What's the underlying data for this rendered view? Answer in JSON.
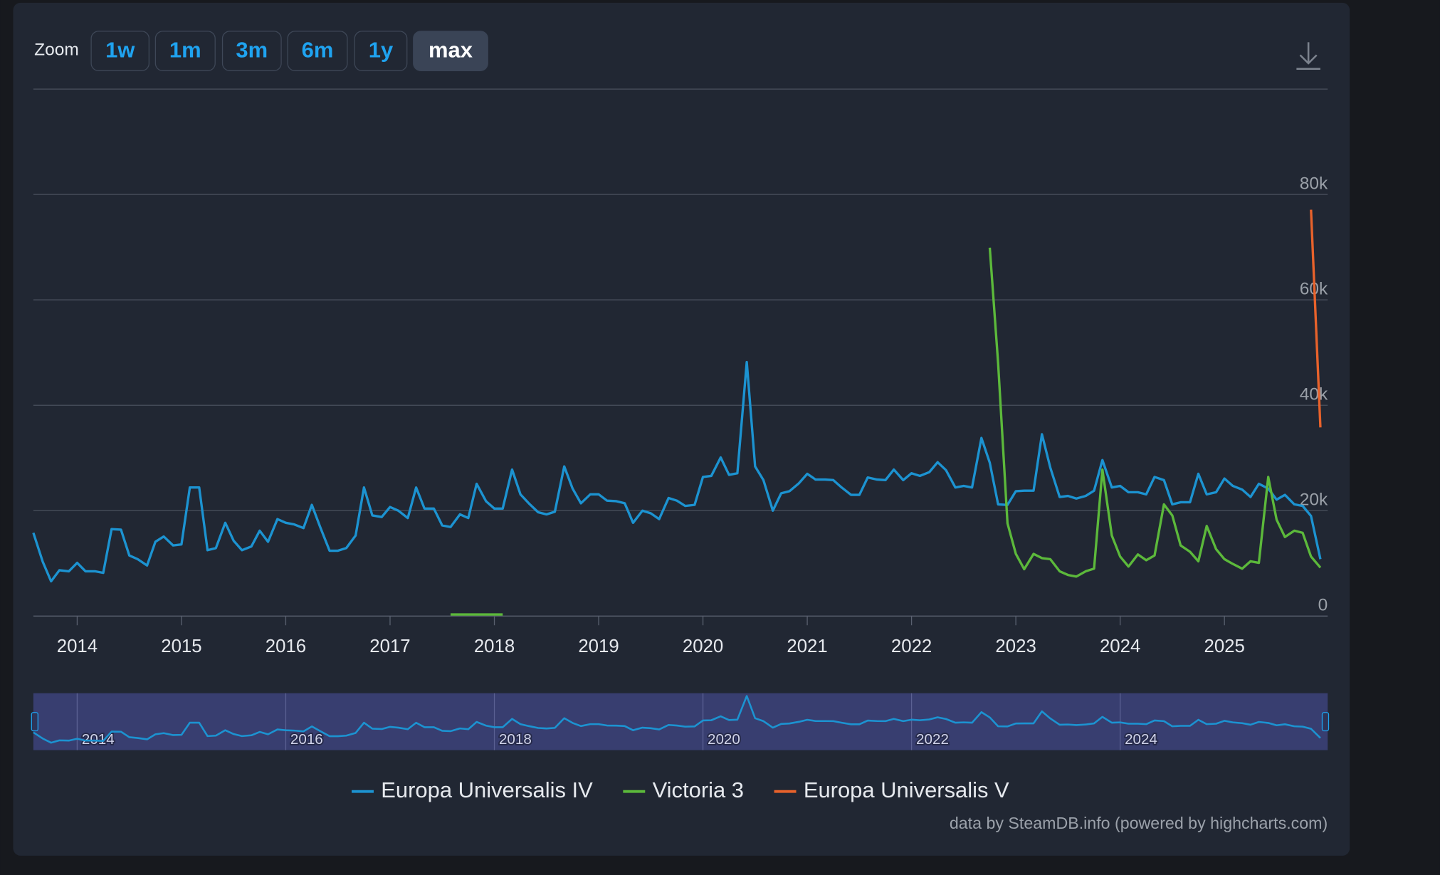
{
  "zoom": {
    "label": "Zoom",
    "buttons": [
      "1w",
      "1m",
      "3m",
      "6m",
      "1y",
      "max"
    ],
    "active": "max"
  },
  "chart_data": {
    "type": "line",
    "xlim": [
      2013.58,
      2025.99
    ],
    "xticks": [
      2014,
      2015,
      2016,
      2017,
      2018,
      2019,
      2020,
      2021,
      2022,
      2023,
      2024,
      2025
    ],
    "ylim": [
      0,
      100000
    ],
    "yticks": [
      0,
      {
        "value": 20000,
        "label": "20k"
      },
      {
        "value": 40000,
        "label": "40k"
      },
      {
        "value": 60000,
        "label": "60k"
      },
      {
        "value": 80000,
        "label": "80k"
      }
    ],
    "grid": true,
    "series": [
      {
        "name": "Europa Universalis IV",
        "color": "#1c93d1",
        "x": [
          2013.58,
          2013.67,
          2013.75,
          2013.83,
          2013.92,
          2014,
          2014.08,
          2014.17,
          2014.25,
          2014.33,
          2014.42,
          2014.5,
          2014.58,
          2014.67,
          2014.75,
          2014.83,
          2014.92,
          2015,
          2015.08,
          2015.17,
          2015.25,
          2015.33,
          2015.42,
          2015.5,
          2015.58,
          2015.67,
          2015.75,
          2015.83,
          2015.92,
          2016,
          2016.08,
          2016.17,
          2016.25,
          2016.33,
          2016.42,
          2016.5,
          2016.58,
          2016.67,
          2016.75,
          2016.83,
          2016.92,
          2017,
          2017.08,
          2017.17,
          2017.25,
          2017.33,
          2017.42,
          2017.5,
          2017.58,
          2017.67,
          2017.75,
          2017.83,
          2017.92,
          2018,
          2018.08,
          2018.17,
          2018.25,
          2018.33,
          2018.42,
          2018.5,
          2018.58,
          2018.67,
          2018.75,
          2018.83,
          2018.92,
          2019,
          2019.08,
          2019.17,
          2019.25,
          2019.33,
          2019.42,
          2019.5,
          2019.58,
          2019.67,
          2019.75,
          2019.83,
          2019.92,
          2020,
          2020.08,
          2020.17,
          2020.25,
          2020.33,
          2020.42,
          2020.5,
          2020.58,
          2020.67,
          2020.75,
          2020.83,
          2020.92,
          2021,
          2021.08,
          2021.17,
          2021.25,
          2021.33,
          2021.42,
          2021.5,
          2021.58,
          2021.67,
          2021.75,
          2021.83,
          2021.92,
          2022,
          2022.08,
          2022.17,
          2022.25,
          2022.33,
          2022.42,
          2022.5,
          2022.58,
          2022.67,
          2022.75,
          2022.83,
          2022.92,
          2023,
          2023.08,
          2023.17,
          2023.25,
          2023.33,
          2023.42,
          2023.5,
          2023.58,
          2023.67,
          2023.75,
          2023.83,
          2023.92,
          2024,
          2024.08,
          2024.17,
          2024.25,
          2024.33,
          2024.42,
          2024.5,
          2024.58,
          2024.67,
          2024.75,
          2024.83,
          2024.92,
          2025,
          2025.08,
          2025.17,
          2025.25,
          2025.33,
          2025.42,
          2025.5,
          2025.58,
          2025.67,
          2025.75,
          2025.83,
          2025.92
        ],
        "values": [
          15800,
          10300,
          6600,
          8700,
          8500,
          10100,
          8500,
          8500,
          8200,
          16500,
          16400,
          11500,
          10800,
          9600,
          14100,
          15100,
          13400,
          13600,
          24400,
          24400,
          12500,
          12900,
          17700,
          14300,
          12500,
          13200,
          16200,
          14100,
          18400,
          17700,
          17400,
          16700,
          21100,
          16900,
          12400,
          12400,
          12900,
          15300,
          24400,
          19100,
          18800,
          20700,
          20000,
          18600,
          24400,
          20400,
          20400,
          17200,
          16900,
          19300,
          18600,
          25100,
          21800,
          20400,
          20400,
          27800,
          23100,
          21400,
          19700,
          19300,
          19800,
          28400,
          24200,
          21400,
          23100,
          23100,
          21900,
          21800,
          21400,
          17700,
          20000,
          19500,
          18400,
          22400,
          21900,
          20900,
          21100,
          26400,
          26600,
          30100,
          26800,
          27100,
          48200,
          28400,
          25800,
          20000,
          23300,
          23700,
          25200,
          27000,
          25900,
          25900,
          25800,
          24400,
          23000,
          23000,
          26300,
          25900,
          25800,
          27800,
          25800,
          27100,
          26600,
          27300,
          29200,
          27700,
          24400,
          24700,
          24400,
          33800,
          29100,
          21200,
          21100,
          23700,
          23800,
          23800,
          34500,
          28200,
          22600,
          22800,
          22300,
          22800,
          23800,
          29600,
          24400,
          24700,
          23500,
          23500,
          23100,
          26400,
          25800,
          21200,
          21600,
          21600,
          27000,
          23100,
          23500,
          26100,
          24700,
          24000,
          22600,
          25100,
          24200,
          22100,
          23000,
          21200,
          20900,
          19000,
          10800
        ]
      },
      {
        "name": "Victoria 3",
        "color": "#5cb93b",
        "x": [
          2017.58,
          2017.67,
          2017.75,
          2017.83,
          2017.92,
          2018,
          2018.08,
          2018.17,
          2022.75,
          2022.83,
          2022.92,
          2023,
          2023.08,
          2023.17,
          2023.25,
          2023.33,
          2023.42,
          2023.5,
          2023.58,
          2023.67,
          2023.75,
          2023.83,
          2023.92,
          2024,
          2024.08,
          2024.17,
          2024.25,
          2024.33,
          2024.42,
          2024.5,
          2024.58,
          2024.67,
          2024.75,
          2024.83,
          2024.92,
          2025,
          2025.08,
          2025.17,
          2025.25,
          2025.33,
          2025.42,
          2025.5,
          2025.58,
          2025.67,
          2025.75,
          2025.83,
          2025.92
        ],
        "values": [
          300,
          300,
          300,
          300,
          300,
          300,
          300,
          null,
          69900,
          48000,
          17600,
          11800,
          8900,
          11800,
          11000,
          10800,
          8500,
          7800,
          7500,
          8500,
          9000,
          27800,
          15300,
          11300,
          9400,
          11700,
          10600,
          11500,
          21200,
          19100,
          13400,
          12200,
          10400,
          17100,
          12700,
          10800,
          9900,
          9000,
          10400,
          10100,
          26400,
          18300,
          15000,
          16200,
          15800,
          11300,
          9200
        ]
      },
      {
        "name": "Europa Universalis V",
        "color": "#e8622b",
        "x": [
          2025.83,
          2025.92
        ],
        "values": [
          77100,
          35800
        ]
      }
    ],
    "navigator": {
      "xticks": [
        2014,
        2016,
        2018,
        2020,
        2022,
        2024
      ]
    },
    "credit": "data by SteamDB.info (powered by highcharts.com)"
  }
}
